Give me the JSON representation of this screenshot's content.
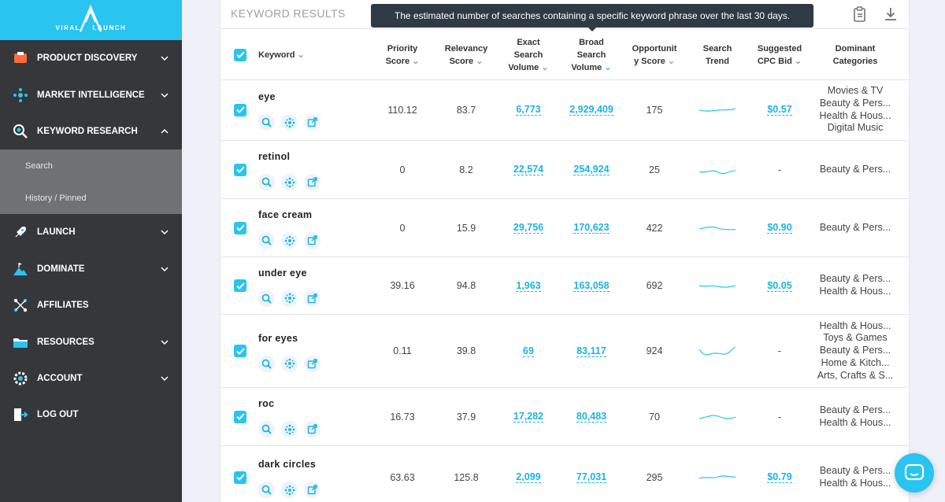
{
  "brand": {
    "left": "VIRAL",
    "right": "LAUNCH"
  },
  "nav": {
    "items": [
      {
        "label": "PRODUCT DISCOVERY"
      },
      {
        "label": "MARKET INTELLIGENCE"
      },
      {
        "label": "KEYWORD RESEARCH"
      },
      {
        "label": "LAUNCH"
      },
      {
        "label": "DOMINATE"
      },
      {
        "label": "AFFILIATES"
      },
      {
        "label": "RESOURCES"
      },
      {
        "label": "ACCOUNT"
      },
      {
        "label": "LOG OUT"
      }
    ],
    "sub": [
      {
        "label": "Search"
      },
      {
        "label": "History / Pinned"
      }
    ]
  },
  "panel": {
    "title": "KEYWORD RESULTS",
    "tooltip": "The estimated number of searches containing a specific keyword phrase over the last 30 days."
  },
  "columns": {
    "keyword": "Keyword",
    "priority_1": "Priority",
    "priority_2": "Score",
    "relevancy_1": "Relevancy",
    "relevancy_2": "Score",
    "exact_1": "Exact",
    "exact_2": "Search",
    "exact_3": "Volume",
    "broad_1": "Broad",
    "broad_2": "Search",
    "broad_3": "Volume",
    "opp_1": "Opportunit",
    "opp_2": "y Score",
    "trend_1": "Search",
    "trend_2": "Trend",
    "cpc_1": "Suggested",
    "cpc_2": "CPC Bid",
    "cats_1": "Dominant",
    "cats_2": "Categories"
  },
  "rows": [
    {
      "keyword": "eye",
      "priority": "110.12",
      "relevancy": "83.7",
      "exact": "6,773",
      "broad": "2,929,409",
      "opportunity": "175",
      "cpc": "$0.57",
      "categories": [
        "Movies & TV",
        "Beauty & Pers...",
        "Health & Hous...",
        "Digital Music"
      ]
    },
    {
      "keyword": "retinol",
      "priority": "0",
      "relevancy": "8.2",
      "exact": "22,574",
      "broad": "254,924",
      "opportunity": "25",
      "cpc": "-",
      "categories": [
        "Beauty & Pers..."
      ]
    },
    {
      "keyword": "face cream",
      "priority": "0",
      "relevancy": "15.9",
      "exact": "29,756",
      "broad": "170,623",
      "opportunity": "422",
      "cpc": "$0.90",
      "categories": [
        "Beauty & Pers..."
      ]
    },
    {
      "keyword": "under eye",
      "priority": "39.16",
      "relevancy": "94.8",
      "exact": "1,963",
      "broad": "163,058",
      "opportunity": "692",
      "cpc": "$0.05",
      "categories": [
        "Beauty & Pers...",
        "Health & Hous..."
      ]
    },
    {
      "keyword": "for eyes",
      "priority": "0.11",
      "relevancy": "39.8",
      "exact": "69",
      "broad": "83,117",
      "opportunity": "924",
      "cpc": "-",
      "categories": [
        "Health & Hous...",
        "Toys & Games",
        "Beauty & Pers...",
        "Home & Kitch...",
        "Arts, Crafts & S..."
      ]
    },
    {
      "keyword": "roc",
      "priority": "16.73",
      "relevancy": "37.9",
      "exact": "17,282",
      "broad": "80,483",
      "opportunity": "70",
      "cpc": "-",
      "categories": [
        "Beauty & Pers...",
        "Health & Hous..."
      ]
    },
    {
      "keyword": "dark circles",
      "priority": "63.63",
      "relevancy": "125.8",
      "exact": "2,099",
      "broad": "77,031",
      "opportunity": "295",
      "cpc": "$0.79",
      "categories": [
        "Beauty & Pers...",
        "Health & Hous..."
      ]
    }
  ],
  "colors": {
    "accent": "#29c4f0",
    "sidebar": "#35373a",
    "tooltip": "#2f3a44"
  },
  "icons": [
    "search-icon",
    "network-icon",
    "external-link-icon",
    "clipboard-icon",
    "download-icon",
    "chat-icon"
  ]
}
